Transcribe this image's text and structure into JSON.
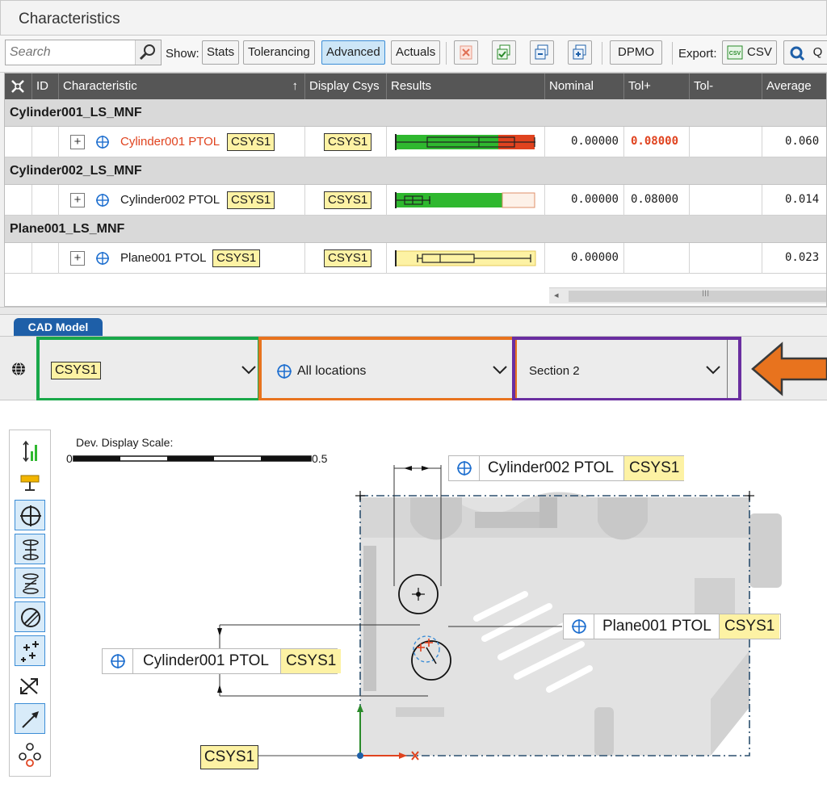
{
  "panel": {
    "title": "Characteristics"
  },
  "toolbar": {
    "search_placeholder": "Search",
    "show_label": "Show:",
    "buttons": [
      "Stats",
      "Tolerancing",
      "Advanced",
      "Actuals"
    ],
    "active_button": "Advanced",
    "dpmo_label": "DPMO",
    "export_label": "Export:",
    "csv_label": "CSV",
    "truncated_label": "Q"
  },
  "table": {
    "headers": {
      "id": "ID",
      "characteristic": "Characteristic",
      "display_csys": "Display Csys",
      "results": "Results",
      "nominal": "Nominal",
      "tol_plus": "Tol+",
      "tol_minus": "Tol-",
      "average": "Average"
    },
    "groups": [
      {
        "name": "Cylinder001_LS_MNF",
        "row": {
          "name": "Cylinder001 PTOL",
          "csys": "CSYS1",
          "display_csys": "CSYS1",
          "nominal": "0.00000",
          "tol_plus": "0.08000",
          "tol_minus": "",
          "average": "0.060",
          "out_of_tol": true
        }
      },
      {
        "name": "Cylinder002_LS_MNF",
        "row": {
          "name": "Cylinder002 PTOL",
          "csys": "CSYS1",
          "display_csys": "CSYS1",
          "nominal": "0.00000",
          "tol_plus": "0.08000",
          "tol_minus": "",
          "average": "0.014",
          "out_of_tol": false
        }
      },
      {
        "name": "Plane001_LS_MNF",
        "row": {
          "name": "Plane001 PTOL",
          "csys": "CSYS1",
          "display_csys": "CSYS1",
          "nominal": "0.00000",
          "tol_plus": "",
          "tol_minus": "",
          "average": "0.023",
          "out_of_tol": false
        }
      }
    ],
    "scroll_grip": "III"
  },
  "cad": {
    "tab_label": "CAD Model",
    "csys_dropdown": "CSYS1",
    "location_dropdown": "All locations",
    "section_dropdown": "Section 2",
    "scale_label": "Dev. Display Scale:",
    "scale_min": "0",
    "scale_max": "0.5",
    "callouts": {
      "cyl002": {
        "name": "Cylinder002 PTOL",
        "csys": "CSYS1"
      },
      "plane001": {
        "name": "Plane001 PTOL",
        "csys": "CSYS1"
      },
      "cyl001": {
        "name": "Cylinder001 PTOL",
        "csys": "CSYS1"
      }
    },
    "origin_label": "CSYS1"
  },
  "colors": {
    "accent_blue": "#1e5fa8",
    "csys_yellow": "#fdf2a4",
    "green_outline": "#1aa84a",
    "orange_outline": "#e8731e",
    "purple_outline": "#6a2ea0",
    "out_of_tol_red": "#e0431f",
    "in_tol_green": "#2fb82f"
  },
  "icons": [
    "search-icon",
    "clear-filter-icon",
    "select-all-icon",
    "collapse-icon",
    "expand-icon",
    "csv-icon",
    "globe-icon",
    "position-icon",
    "arrow-indicator-icon"
  ]
}
